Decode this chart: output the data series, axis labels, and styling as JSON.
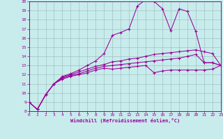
{
  "xlabel": "Windchill (Refroidissement éolien,°C)",
  "xlim": [
    0,
    23
  ],
  "ylim": [
    8,
    20
  ],
  "xticks": [
    0,
    1,
    2,
    3,
    4,
    5,
    6,
    7,
    8,
    9,
    10,
    11,
    12,
    13,
    14,
    15,
    16,
    17,
    18,
    19,
    20,
    21,
    22,
    23
  ],
  "yticks": [
    8,
    9,
    10,
    11,
    12,
    13,
    14,
    15,
    16,
    17,
    18,
    19,
    20
  ],
  "background_color": "#c8ecec",
  "line_color": "#990099",
  "grid_color": "#a0c0c0",
  "curves": [
    {
      "x": [
        0,
        1,
        2,
        3,
        4,
        5,
        6,
        7,
        8,
        9,
        10,
        11,
        12,
        13,
        14,
        15,
        16,
        17,
        18,
        19,
        20,
        21,
        22,
        23
      ],
      "y": [
        9.0,
        8.2,
        9.8,
        11.0,
        11.5,
        11.8,
        12.0,
        12.2,
        12.5,
        12.7,
        12.6,
        12.7,
        12.8,
        12.9,
        13.0,
        12.2,
        12.4,
        12.5,
        12.5,
        12.5,
        12.5,
        12.5,
        12.6,
        13.0
      ]
    },
    {
      "x": [
        0,
        1,
        2,
        3,
        4,
        5,
        6,
        7,
        8,
        9,
        10,
        11,
        12,
        13,
        14,
        15,
        16,
        17,
        18,
        19,
        20,
        21,
        22,
        23
      ],
      "y": [
        9.0,
        8.2,
        9.8,
        11.0,
        11.6,
        11.9,
        12.1,
        12.4,
        12.7,
        12.9,
        13.0,
        13.1,
        13.2,
        13.3,
        13.4,
        13.5,
        13.6,
        13.7,
        13.8,
        14.0,
        14.2,
        13.3,
        13.3,
        13.0
      ]
    },
    {
      "x": [
        0,
        1,
        2,
        3,
        4,
        5,
        6,
        7,
        8,
        9,
        10,
        11,
        12,
        13,
        14,
        15,
        16,
        17,
        18,
        19,
        20,
        21,
        22,
        23
      ],
      "y": [
        9.0,
        8.2,
        9.8,
        11.0,
        11.7,
        12.0,
        12.3,
        12.6,
        12.9,
        13.1,
        13.4,
        13.5,
        13.7,
        13.8,
        14.0,
        14.2,
        14.3,
        14.4,
        14.5,
        14.6,
        14.7,
        14.5,
        14.3,
        13.0
      ]
    },
    {
      "x": [
        0,
        1,
        2,
        3,
        4,
        5,
        6,
        7,
        8,
        9,
        10,
        11,
        12,
        13,
        14,
        15,
        16,
        17,
        18,
        19,
        20,
        21,
        22,
        23
      ],
      "y": [
        9.0,
        8.2,
        9.8,
        11.0,
        11.8,
        12.1,
        12.5,
        13.0,
        13.5,
        14.3,
        16.3,
        16.6,
        17.0,
        19.5,
        20.2,
        20.0,
        19.2,
        16.8,
        19.2,
        18.9,
        16.7,
        13.3,
        13.3,
        13.0
      ]
    }
  ]
}
